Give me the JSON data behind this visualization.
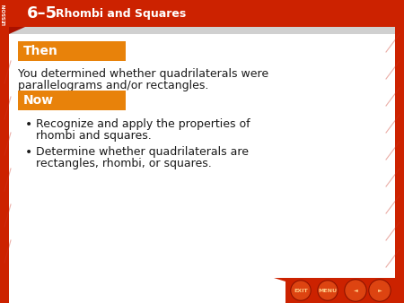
{
  "title_num": "6–5",
  "title_text": "Rhombi and Squares",
  "lesson_label": "LESSON",
  "header_bg": "#cc2200",
  "header_text_color": "#ffffff",
  "slide_bg": "#d0d0d0",
  "main_bg": "#ffffff",
  "orange_color": "#e8820a",
  "orange_text_color": "#ffffff",
  "red_border": "#cc2200",
  "then_label": "Then",
  "now_label": "Now",
  "then_text_line1": "You determined whether quadrilaterals were",
  "then_text_line2": "parallelograms and/or rectangles.",
  "bullet1_line1": "Recognize and apply the properties of",
  "bullet1_line2": "rhombi and squares.",
  "bullet2_line1": "Determine whether quadrilaterals are",
  "bullet2_line2": "rectangles, rhombi, or squares.",
  "body_text_color": "#1a1a1a",
  "footer_bg": "#cc2200"
}
